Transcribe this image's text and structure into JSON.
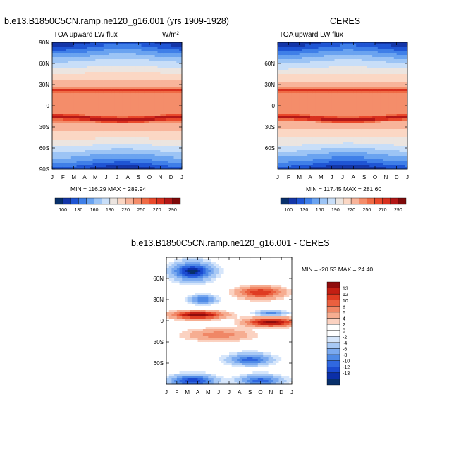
{
  "colors": {
    "abs_palette": [
      "#08306b",
      "#1436a8",
      "#1f55d4",
      "#3f7fe8",
      "#6aa3f0",
      "#9cc4f5",
      "#c8def8",
      "#ece5e0",
      "#fbd7c4",
      "#f8b49a",
      "#f48d6a",
      "#ef6b45",
      "#e9492b",
      "#d8301e",
      "#b31717",
      "#7f0a0a"
    ],
    "diff_palette": [
      "#08306b",
      "#0b2fa8",
      "#1b4bd0",
      "#3068e0",
      "#4f8ae6",
      "#7aa9ef",
      "#a8c9f5",
      "#d6e6fb",
      "#ffffff",
      "#ffffff",
      "#fbd2c1",
      "#f6ad91",
      "#f08766",
      "#ea603f",
      "#df3c22",
      "#c31f13",
      "#8f0c0c"
    ]
  },
  "charts": {
    "model": {
      "title": "b.e13.B1850C5CN.ramp.ne120_g16.001 (yrs 1909-1928)",
      "subtitle": "TOA upward LW flux",
      "units": "W/m²",
      "minmax": "MIN = 116.29 MAX = 289.94"
    },
    "ceres": {
      "title": "CERES",
      "subtitle": "TOA upward LW flux",
      "minmax": "MIN = 117.45 MAX = 281.60"
    },
    "diff": {
      "title": "b.e13.B1850C5CN.ramp.ne120_g16.001 - CERES",
      "minmax": "MIN = -20.53 MAX =  24.40"
    }
  },
  "chart_data": [
    {
      "type": "heatmap",
      "name": "model",
      "x": [
        "J",
        "F",
        "M",
        "A",
        "M",
        "J",
        "J",
        "A",
        "S",
        "O",
        "N",
        "D",
        "J"
      ],
      "y_ticks": [
        "90N",
        "60N",
        "30N",
        "0",
        "30S",
        "60S",
        "90S"
      ],
      "colorbar_levels": [
        "100",
        "130",
        "160",
        "190",
        "220",
        "250",
        "270",
        "290"
      ],
      "value_range": [
        116.29,
        289.94
      ]
    },
    {
      "type": "heatmap",
      "name": "ceres",
      "x": [
        "J",
        "F",
        "M",
        "A",
        "M",
        "J",
        "J",
        "A",
        "S",
        "O",
        "N",
        "D",
        "J"
      ],
      "y_ticks": [
        "60N",
        "30N",
        "0",
        "30S",
        "60S"
      ],
      "colorbar_levels": [
        "100",
        "130",
        "160",
        "190",
        "220",
        "250",
        "270",
        "290"
      ],
      "value_range": [
        117.45,
        281.6
      ]
    },
    {
      "type": "heatmap",
      "name": "diff",
      "x": [
        "J",
        "F",
        "M",
        "A",
        "M",
        "J",
        "J",
        "A",
        "S",
        "O",
        "N",
        "D",
        "J"
      ],
      "y_ticks": [
        "60N",
        "30N",
        "0",
        "30S",
        "60S"
      ],
      "colorbar_levels": [
        "13",
        "12",
        "10",
        "8",
        "6",
        "4",
        "2",
        "0",
        "-2",
        "-4",
        "-6",
        "-8",
        "-10",
        "-12",
        "-13"
      ],
      "value_range": [
        -20.53,
        24.4
      ]
    }
  ]
}
